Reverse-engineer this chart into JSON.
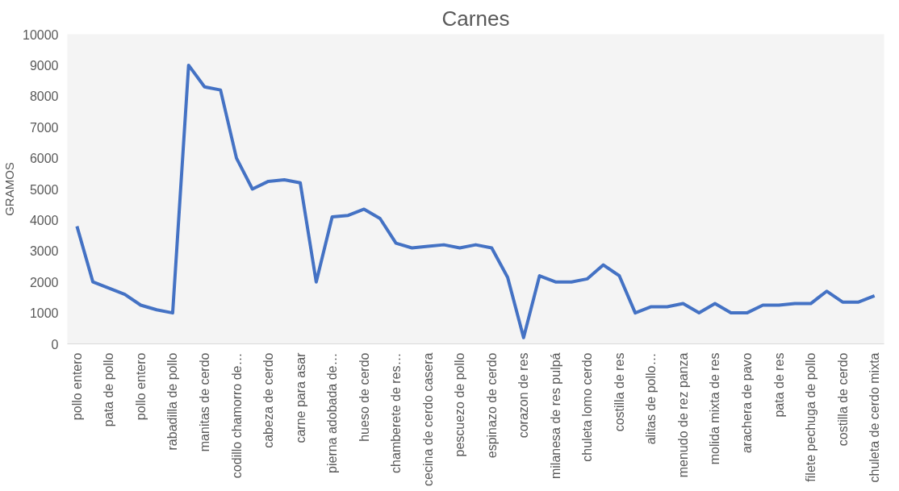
{
  "chart_data": {
    "type": "line",
    "title": "Carnes",
    "ylabel": "GRAMOS",
    "categories": [
      "pollo entero",
      null,
      "pata de pollo",
      null,
      "pollo entero",
      null,
      "rabadilla de pollo",
      null,
      "manitas de cerdo",
      null,
      "codillo chamorro de…",
      null,
      "cabeza de cerdo",
      null,
      "carne para asar",
      null,
      "pierna adobada de…",
      null,
      "hueso de cerdo",
      null,
      "chamberete de res…",
      null,
      "cecina de cerdo casera",
      null,
      "pescuezo de pollo",
      null,
      "espinazo de cerdo",
      null,
      "corazon de res",
      null,
      "milanesa de res pulpá",
      null,
      "chuleta lomo cerdo",
      null,
      "costilla de res",
      null,
      "alitas de pollo…",
      null,
      "menudo de rez panza",
      null,
      "molida mixta de res",
      null,
      "arachera de pavo",
      null,
      "pata de res",
      null,
      "filete pechuga de pollo",
      null,
      "costilla de cerdo",
      null,
      "chuleta de cerdo mixta"
    ],
    "series": [
      {
        "color": "#4472c4",
        "values": [
          3800,
          2000,
          1800,
          1600,
          1250,
          1100,
          1000,
          9000,
          8300,
          8200,
          6000,
          5000,
          5250,
          5300,
          5200,
          2000,
          4100,
          4150,
          4350,
          4050,
          3250,
          3100,
          3150,
          3200,
          3100,
          3200,
          3100,
          2150,
          200,
          2200,
          2000,
          2000,
          2100,
          2550,
          2200,
          1000,
          1200,
          1200,
          1300,
          1000,
          1300,
          1000,
          1000,
          1250,
          1250,
          1300,
          1300,
          1700,
          1350,
          1350,
          1550
        ]
      }
    ],
    "ylim": [
      0,
      10000
    ],
    "yticks": [
      0,
      1000,
      2000,
      3000,
      4000,
      5000,
      6000,
      7000,
      8000,
      9000,
      10000
    ],
    "grid": false,
    "marker": "none",
    "line_style": "solid"
  }
}
